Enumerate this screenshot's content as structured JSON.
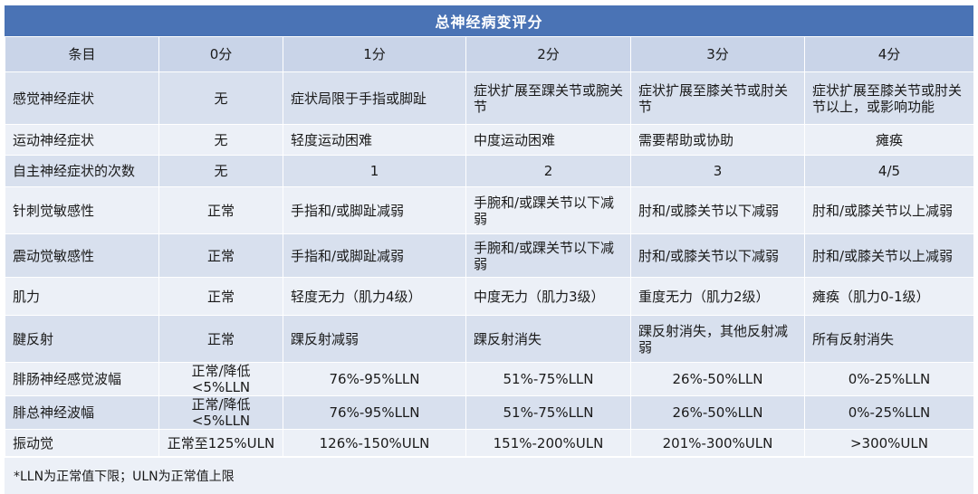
{
  "title": "总神经病变评分",
  "headers": [
    "条目",
    "0分",
    "1分",
    "2分",
    "3分",
    "4分"
  ],
  "rows": [
    [
      "感觉神经症状",
      "无",
      "症状局限于手指或脚趾",
      "症状扩展至踝关节或腕关节",
      "症状扩展至膝关节或肘关节",
      "症状扩展至膝关节或肘关节以上，或影响功能"
    ],
    [
      "运动神经症状",
      "无",
      "轻度运动困难",
      "中度运动困难",
      "需要帮助或协助",
      "瘫痪"
    ],
    [
      "自主神经症状的次数",
      "无",
      "1",
      "2",
      "3",
      "4/5"
    ],
    [
      "针刺觉敏感性",
      "正常",
      "手指和/或脚趾减弱",
      "手腕和/或踝关节以下减弱",
      "肘和/或膝关节以下减弱",
      "肘和/或膝关节以上减弱"
    ],
    [
      "震动觉敏感性",
      "正常",
      "手指和/或脚趾减弱",
      "手腕和/或踝关节以下减弱",
      "肘和/或膝关节以下减弱",
      "肘和/或膝关节以上减弱"
    ],
    [
      "肌力",
      "正常",
      "轻度无力（肌力4级）",
      "中度无力（肌力3级）",
      "重度无力（肌力2级）",
      "瘫痪（肌力0-1级）"
    ],
    [
      "腱反射",
      "正常",
      "踝反射减弱",
      "踝反射消失",
      "踝反射消失，其他反射减弱",
      "所有反射消失"
    ],
    [
      "腓肠神经感觉波幅",
      "正常/降低<5%LLN",
      "76%-95%LLN",
      "51%-75%LLN",
      "26%-50%LLN",
      "0%-25%LLN"
    ],
    [
      "腓总神经波幅",
      "正常/降低<5%LLN",
      "76%-95%LLN",
      "51%-75%LLN",
      "26%-50%LLN",
      "0%-25%LLN"
    ],
    [
      "振动觉",
      "正常至125%ULN",
      "126%-150%ULN",
      "151%-200%ULN",
      "201%-300%ULN",
      ">300%ULN"
    ]
  ],
  "footnote": "*LLN为正常值下限；ULN为正常值上限"
}
